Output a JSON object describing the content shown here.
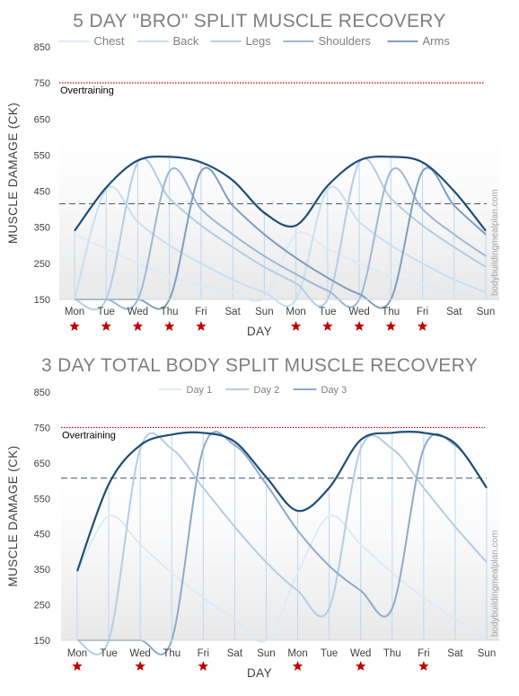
{
  "colors": {
    "background": "#ffffff",
    "plot_gradient_top": "#ffffff",
    "plot_gradient_bottom": "#ececec",
    "threshold_line": "#c00000",
    "dashed_line": "#44546a",
    "total_line": "#1f4e79",
    "star": "#c00000",
    "drop_line": "#bdd7ee"
  },
  "watermark": "bodybuildingmealplan.com",
  "star_icon": "star-icon",
  "chart_data": [
    {
      "type": "line",
      "title": "5 DAY \"BRO\" SPLIT MUSCLE RECOVERY",
      "xlabel": "DAY",
      "ylabel": "MUSCLE DAMAGE (CK)",
      "ylim": [
        150,
        850
      ],
      "yticks": [
        150,
        250,
        350,
        450,
        550,
        650,
        750,
        850
      ],
      "categories": [
        "Mon",
        "Tue",
        "Wed",
        "Thu",
        "Fri",
        "Sat",
        "Sun",
        "Mon",
        "Tue",
        "Wed",
        "Thu",
        "Fri",
        "Sat",
        "Sun"
      ],
      "training_days": [
        0,
        1,
        2,
        3,
        4,
        7,
        8,
        9,
        10,
        11
      ],
      "legend_position": "top",
      "threshold": {
        "label": "Overtraining",
        "value": 750
      },
      "reference_line": 415,
      "series": [
        {
          "name": "Chest",
          "color": "#ddebf7",
          "values": [
            330,
            290,
            250,
            215,
            190,
            170,
            155,
            330,
            290,
            250,
            215,
            190,
            170,
            155
          ]
        },
        {
          "name": "Back",
          "color": "#c9dff1",
          "values": [
            150,
            455,
            365,
            300,
            250,
            205,
            170,
            150,
            455,
            365,
            300,
            250,
            205,
            170
          ]
        },
        {
          "name": "Legs",
          "color": "#b4cde6",
          "values": [
            150,
            150,
            530,
            430,
            355,
            295,
            240,
            195,
            150,
            530,
            430,
            355,
            295,
            240
          ]
        },
        {
          "name": "Shoulders",
          "color": "#9db8d6",
          "values": [
            150,
            150,
            150,
            505,
            400,
            330,
            270,
            220,
            175,
            150,
            505,
            400,
            330,
            270
          ]
        },
        {
          "name": "Arms",
          "color": "#7f9fc0",
          "values": [
            150,
            150,
            150,
            150,
            505,
            410,
            330,
            265,
            210,
            165,
            150,
            505,
            410,
            330
          ]
        }
      ],
      "total": {
        "color": "#1f4e79",
        "values": [
          340,
          460,
          535,
          545,
          530,
          480,
          390,
          355,
          465,
          535,
          545,
          530,
          450,
          340
        ]
      }
    },
    {
      "type": "line",
      "title": "3 DAY TOTAL BODY SPLIT MUSCLE RECOVERY",
      "xlabel": "DAY",
      "ylabel": "MUSCLE DAMAGE (CK)",
      "ylim": [
        150,
        850
      ],
      "yticks": [
        150,
        250,
        350,
        450,
        550,
        650,
        750,
        850
      ],
      "categories": [
        "Mon",
        "Tue",
        "Wed",
        "Thu",
        "Fri",
        "Sat",
        "Sun",
        "Mon",
        "Tue",
        "Wed",
        "Thu",
        "Fri",
        "Sat",
        "Sun"
      ],
      "training_days": [
        0,
        2,
        4,
        7,
        9,
        11
      ],
      "legend_position": "top",
      "threshold": {
        "label": "Overtraining",
        "value": 750
      },
      "reference_line": 607,
      "series": [
        {
          "name": "Day 1",
          "color": "#ddebf7",
          "values": [
            340,
            500,
            420,
            340,
            270,
            210,
            150,
            340,
            500,
            420,
            340,
            270,
            210,
            150
          ]
        },
        {
          "name": "Day 2",
          "color": "#b4cde6",
          "values": [
            150,
            150,
            690,
            690,
            580,
            470,
            370,
            290,
            240,
            690,
            690,
            580,
            470,
            370
          ]
        },
        {
          "name": "Day 3",
          "color": "#8eaacb",
          "values": [
            150,
            150,
            150,
            150,
            690,
            700,
            590,
            460,
            360,
            290,
            240,
            690,
            700,
            580
          ]
        }
      ],
      "total": {
        "color": "#1f4e79",
        "values": [
          345,
          590,
          700,
          730,
          735,
          710,
          610,
          515,
          580,
          715,
          735,
          735,
          705,
          580
        ]
      }
    }
  ]
}
